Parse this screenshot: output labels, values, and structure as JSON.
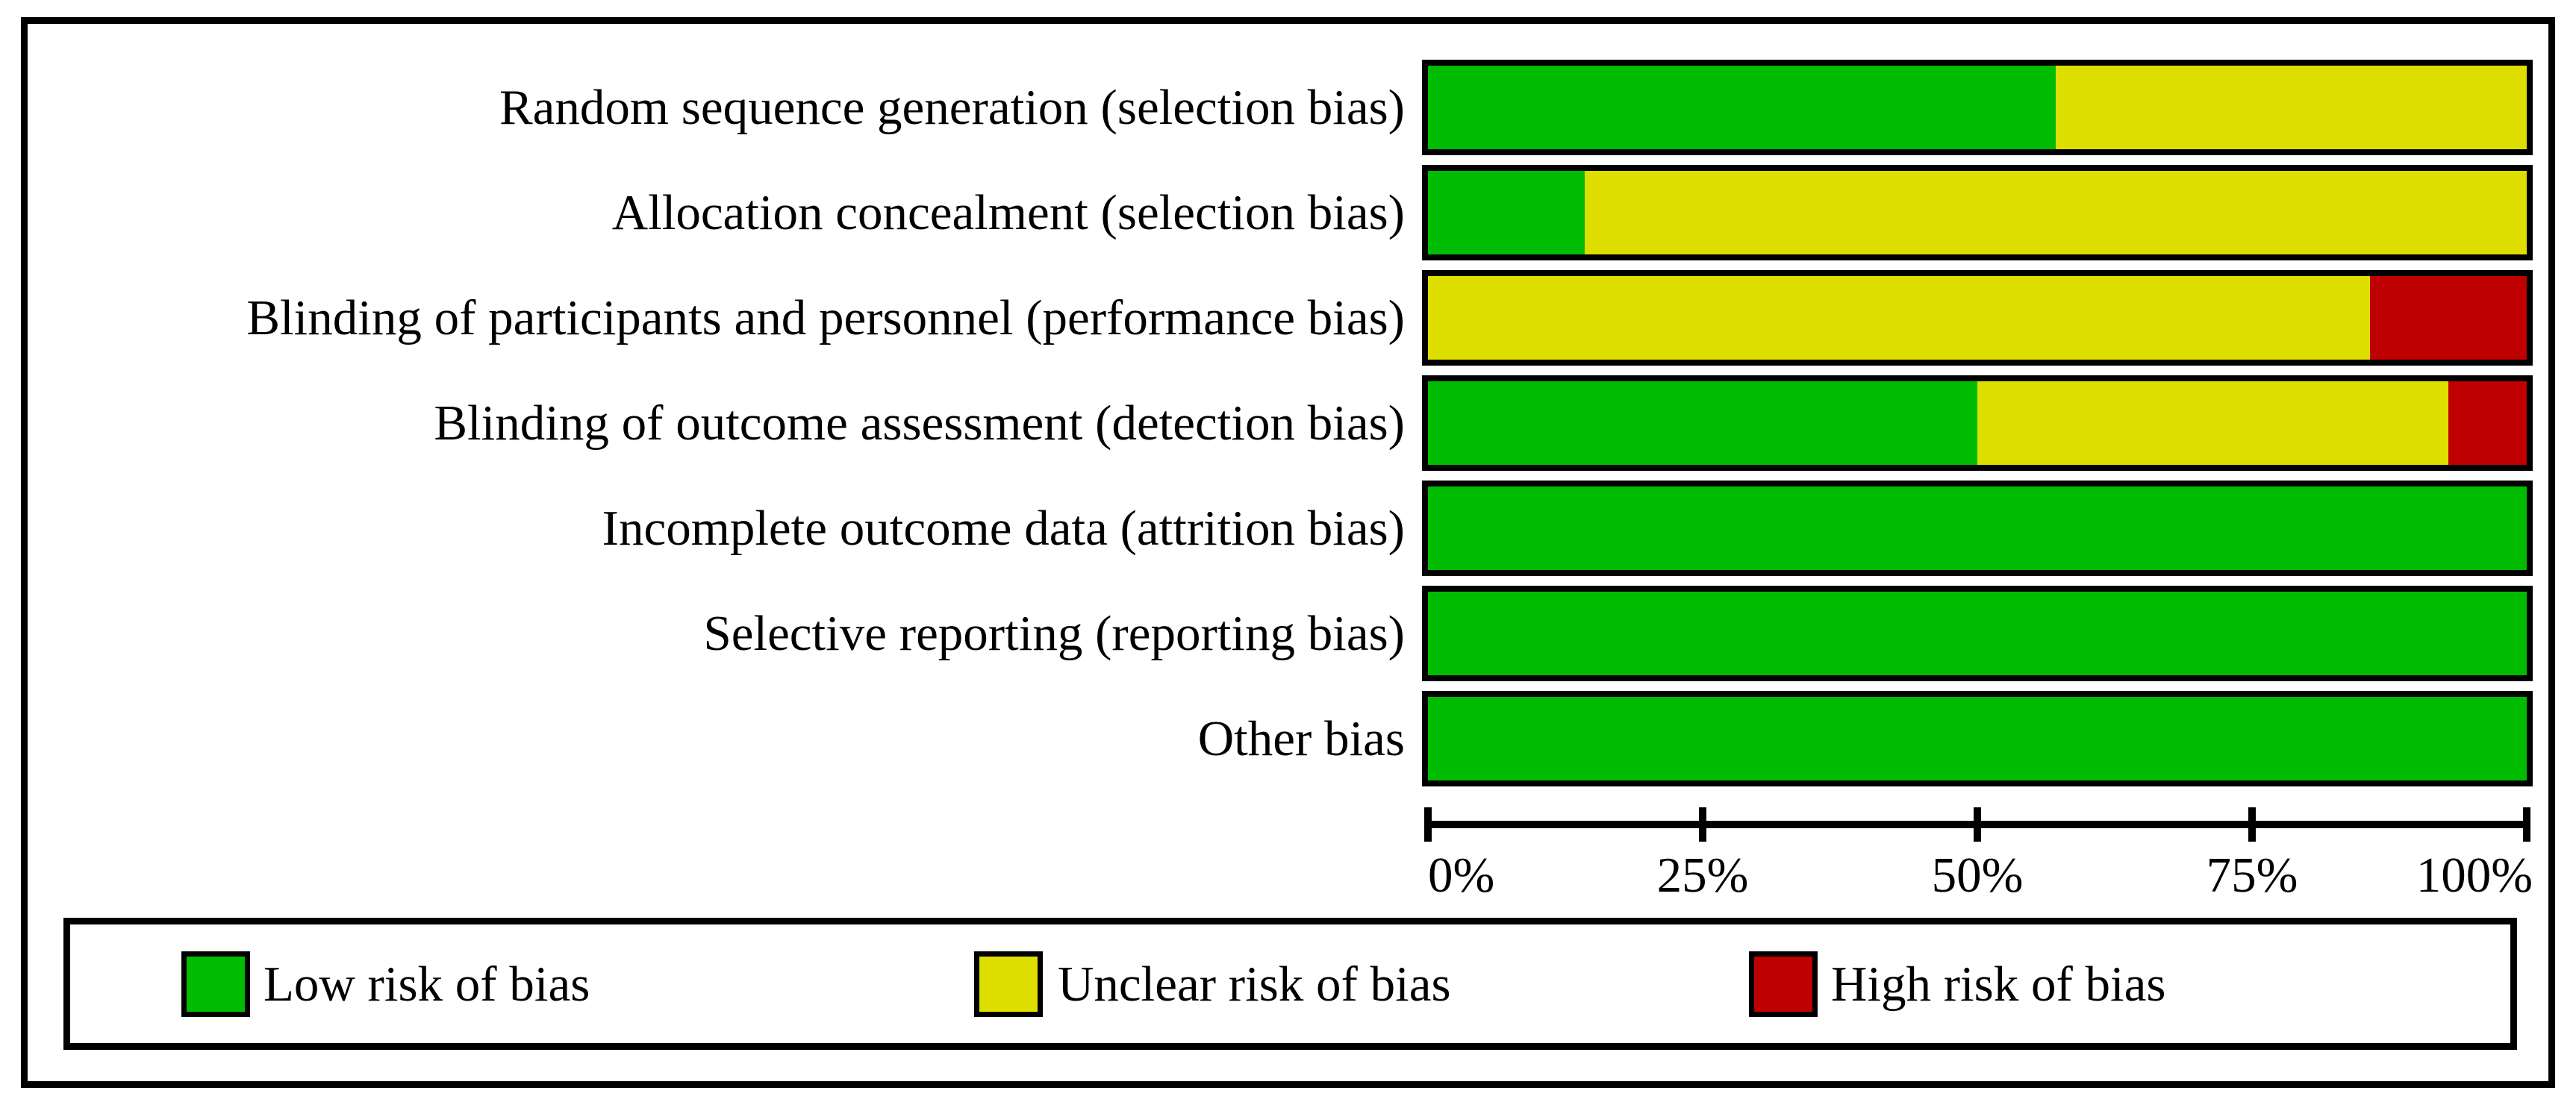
{
  "figure": {
    "kind": "risk-of-bias-graph",
    "background_color": "#ffffff",
    "border_color": "#000000"
  },
  "chart_data": {
    "type": "bar",
    "orientation": "horizontal",
    "stacked": true,
    "grid": false,
    "categories": [
      "Random sequence generation (selection bias)",
      "Allocation concealment (selection bias)",
      "Blinding of participants and personnel (performance bias)",
      "Blinding of outcome assessment (detection bias)",
      "Incomplete outcome data (attrition bias)",
      "Selective reporting (reporting bias)",
      "Other bias"
    ],
    "series": [
      {
        "name": "Low risk of bias",
        "color": "#00BC00",
        "values": [
          57.1,
          14.3,
          0,
          50,
          100,
          100,
          100
        ]
      },
      {
        "name": "Unclear risk of bias",
        "color": "#DEDE00",
        "values": [
          42.9,
          85.7,
          85.7,
          42.9,
          0,
          0,
          0.0
        ]
      },
      {
        "name": "High risk of bias",
        "color": "#BE0000",
        "values": [
          0,
          0,
          14.3,
          7.1,
          0,
          0,
          0.0
        ]
      }
    ],
    "x_axis": {
      "range": [
        0,
        100
      ],
      "tick_labels": [
        "0%",
        "25%",
        "50%",
        "75%",
        "100%"
      ]
    },
    "legend": {
      "position": "bottom",
      "items": [
        {
          "label": "Low risk of bias",
          "color": "#00BC00"
        },
        {
          "label": "Unclear risk of bias",
          "color": "#DEDE00"
        },
        {
          "label": "High risk of bias",
          "color": "#BE0000"
        }
      ]
    }
  }
}
